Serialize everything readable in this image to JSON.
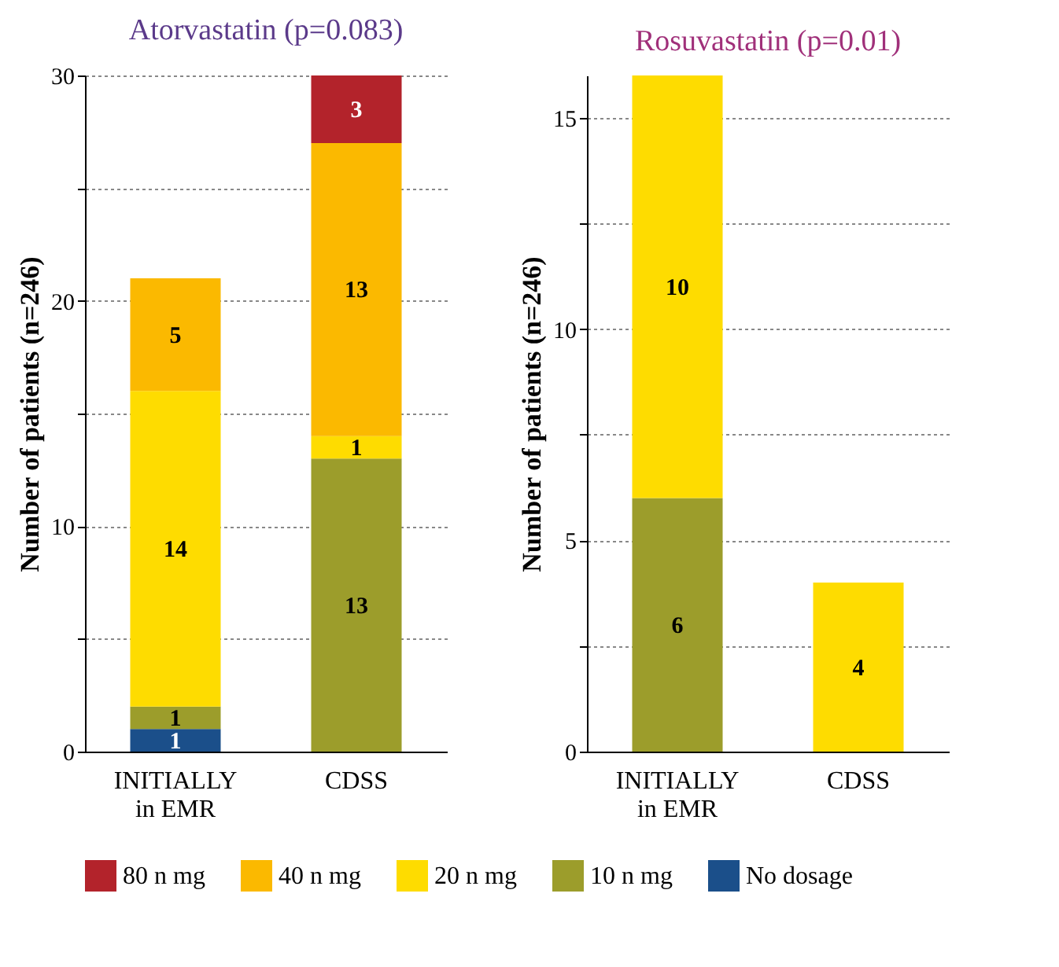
{
  "chart_data": [
    {
      "type": "bar",
      "title": "Atorvastatin (p=0.083)",
      "ylabel": "Number of patients (n=246)",
      "categories": [
        "INITIALLY\nin EMR",
        "CDSS"
      ],
      "stacked": true,
      "data_labels": true,
      "grid": "y",
      "legend": "bottom",
      "ylim": [
        0,
        30
      ],
      "yticks": [
        0,
        {
          "value": 5,
          "label": null
        },
        10,
        {
          "value": 15,
          "label": null
        },
        20,
        {
          "value": 25,
          "label": null
        },
        30
      ],
      "series": [
        {
          "name": "No dosage",
          "color": "#1b4f8a",
          "values": [
            1,
            null
          ]
        },
        {
          "name": "10 n mg",
          "color": "#9c9d2b",
          "values": [
            1,
            13
          ]
        },
        {
          "name": "20 n mg",
          "color": "#fedc00",
          "values": [
            14,
            1
          ]
        },
        {
          "name": "40 n mg",
          "color": "#fbb900",
          "values": [
            5,
            13
          ]
        },
        {
          "name": "80 n mg",
          "color": "#b3232b",
          "values": [
            null,
            3
          ]
        }
      ]
    },
    {
      "type": "bar",
      "title": "Rosuvastatin (p=0.01)",
      "ylabel": "Number of patients (n=246)",
      "categories": [
        "INITIALLY\nin EMR",
        "CDSS"
      ],
      "stacked": true,
      "data_labels": true,
      "grid": "y",
      "legend": "bottom",
      "ylim": [
        0,
        16
      ],
      "yticks": [
        0,
        {
          "value": 2.5,
          "label": null
        },
        5,
        {
          "value": 7.5,
          "label": null
        },
        10,
        {
          "value": 12.5,
          "label": null
        },
        15
      ],
      "series": [
        {
          "name": "10 n mg",
          "color": "#9c9d2b",
          "values": [
            6,
            null
          ]
        },
        {
          "name": "20 n mg",
          "color": "#fedc00",
          "values": [
            10,
            4
          ]
        }
      ]
    }
  ]
}
